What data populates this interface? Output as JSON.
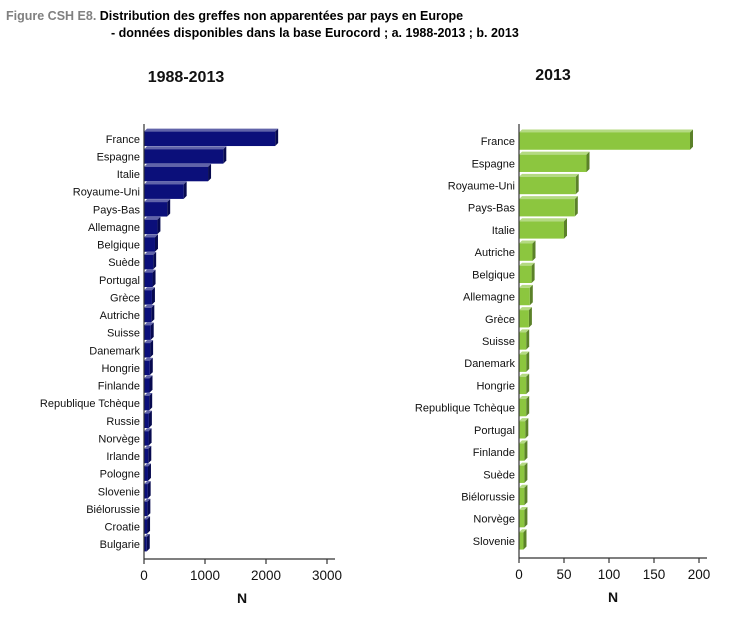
{
  "caption": {
    "lead": "Figure CSH E8.",
    "text": "Distribution des greffes non apparentées par pays en Europe",
    "line2": "- données disponibles dans la base Eurocord ; a. 1988-2013 ;  b. 2013"
  },
  "chart_data": [
    {
      "type": "bar",
      "orientation": "horizontal",
      "title": "1988-2013",
      "xlabel": "N",
      "ylabel": "",
      "xlim": [
        0,
        3000
      ],
      "xticks": [
        0,
        1000,
        2000,
        3000
      ],
      "color": "#0b0f7a",
      "categories": [
        "France",
        "Espagne",
        "Italie",
        "Royaume-Uni",
        "Pays-Bas",
        "Allemagne",
        "Belgique",
        "Suède",
        "Portugal",
        "Grèce",
        "Autriche",
        "Suisse",
        "Danemark",
        "Hongrie",
        "Finlande",
        "Republique Tchèque",
        "Russie",
        "Norvège",
        "Irlande",
        "Pologne",
        "Slovenie",
        "Biélorussie",
        "Croatie",
        "Bulgarie"
      ],
      "values": [
        2150,
        1300,
        1050,
        650,
        380,
        220,
        180,
        150,
        140,
        130,
        120,
        110,
        100,
        95,
        90,
        85,
        80,
        75,
        70,
        65,
        60,
        55,
        50,
        45
      ]
    },
    {
      "type": "bar",
      "orientation": "horizontal",
      "title": "2013",
      "xlabel": "N",
      "ylabel": "",
      "xlim": [
        0,
        200
      ],
      "xticks": [
        0,
        50,
        100,
        150,
        200
      ],
      "color": "#8cc63f",
      "categories": [
        "France",
        "Espagne",
        "Royaume-Uni",
        "Pays-Bas",
        "Italie",
        "Autriche",
        "Belgique",
        "Allemagne",
        "Grèce",
        "Suisse",
        "Danemark",
        "Hongrie",
        "Republique Tchèque",
        "Portugal",
        "Finlande",
        "Suède",
        "Biélorussie",
        "Norvège",
        "Slovenie"
      ],
      "values": [
        190,
        75,
        63,
        62,
        50,
        15,
        14,
        12,
        11,
        8,
        8,
        8,
        8,
        7,
        6,
        6,
        6,
        6,
        5
      ]
    }
  ]
}
